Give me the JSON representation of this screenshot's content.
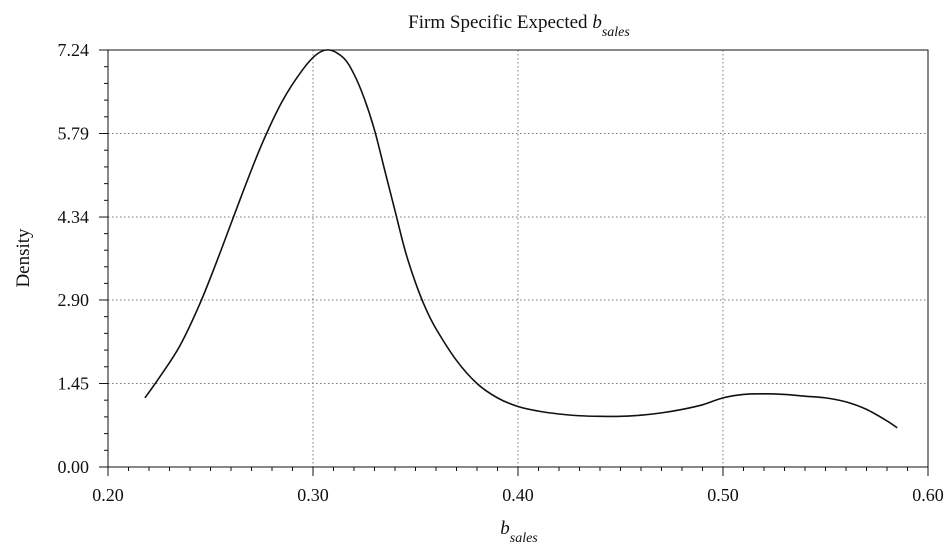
{
  "chart_data": {
    "type": "line",
    "title": {
      "main": "Firm Specific Expected ",
      "var": "b",
      "sub": "sales"
    },
    "xlabel": {
      "var": "b",
      "sub": "sales"
    },
    "ylabel": "Density",
    "xlim": [
      0.2,
      0.6
    ],
    "ylim": [
      0.0,
      7.24
    ],
    "xticks": [
      "0.20",
      "0.30",
      "0.40",
      "0.50",
      "0.60"
    ],
    "yticks": [
      "0.00",
      "1.45",
      "2.90",
      "4.34",
      "5.79",
      "7.24"
    ],
    "grid": true,
    "series": [
      {
        "x": [
          0.218,
          0.225,
          0.235,
          0.245,
          0.255,
          0.265,
          0.275,
          0.285,
          0.295,
          0.302,
          0.308,
          0.315,
          0.32,
          0.325,
          0.33,
          0.335,
          0.34,
          0.345,
          0.35,
          0.355,
          0.36,
          0.37,
          0.38,
          0.39,
          0.4,
          0.41,
          0.42,
          0.43,
          0.44,
          0.45,
          0.46,
          0.47,
          0.48,
          0.49,
          0.5,
          0.51,
          0.52,
          0.53,
          0.54,
          0.55,
          0.56,
          0.57,
          0.58,
          0.585
        ],
        "y": [
          1.2,
          1.55,
          2.1,
          2.85,
          3.75,
          4.7,
          5.6,
          6.35,
          6.9,
          7.17,
          7.24,
          7.1,
          6.82,
          6.4,
          5.85,
          5.15,
          4.45,
          3.75,
          3.2,
          2.75,
          2.4,
          1.85,
          1.45,
          1.2,
          1.05,
          0.97,
          0.92,
          0.89,
          0.88,
          0.88,
          0.9,
          0.94,
          1.0,
          1.08,
          1.2,
          1.26,
          1.27,
          1.26,
          1.23,
          1.2,
          1.13,
          1.0,
          0.8,
          0.68
        ]
      }
    ]
  }
}
